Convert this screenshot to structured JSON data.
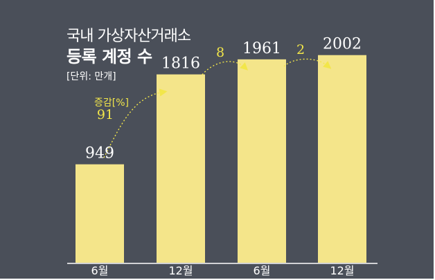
{
  "title_line1": "국내 가상자산거래소",
  "title_line2": "등록 계정 수",
  "unit_label": "[단위: 만개]",
  "change_label": "증감[%]",
  "colors": {
    "background": "#4a4f59",
    "bar": "#f4e58a",
    "highlight": "#f2e64a",
    "text": "#ffffff"
  },
  "chart_data": {
    "type": "bar",
    "categories": [
      "6월",
      "12월",
      "6월",
      "12월"
    ],
    "values": [
      949,
      1816,
      1961,
      2002
    ],
    "data_labels": [
      "949",
      "1816",
      "1961",
      "2002"
    ],
    "changes": [
      "91",
      "8",
      "2"
    ],
    "ylim": [
      0,
      2200
    ],
    "grid": false,
    "legend": "none"
  }
}
